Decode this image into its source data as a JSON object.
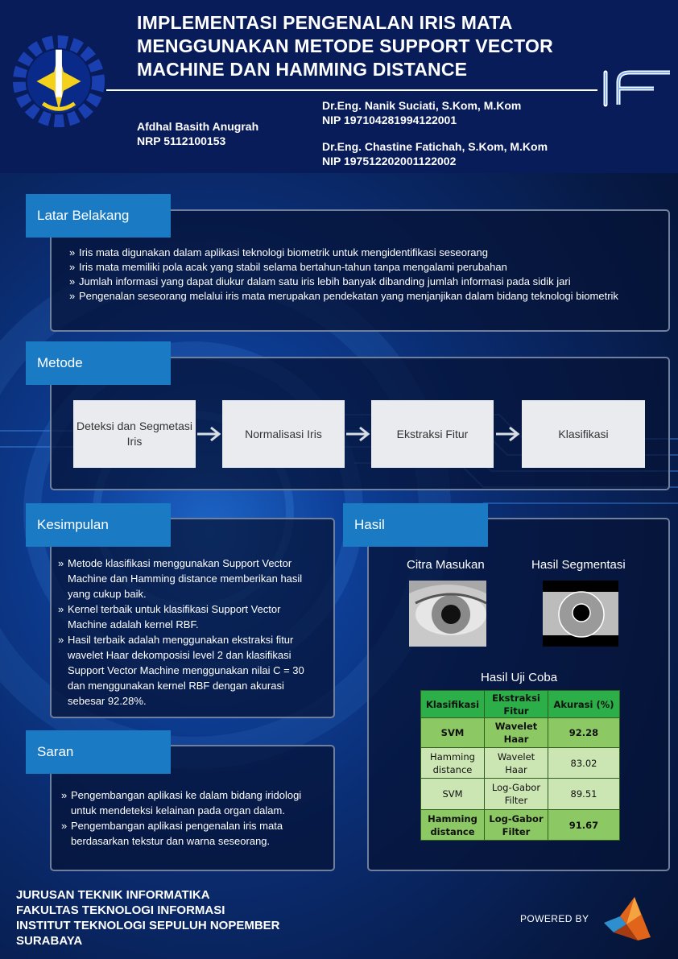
{
  "header": {
    "title_lines": [
      "IMPLEMENTASI PENGENALAN IRIS MATA",
      "MENGGUNAKAN METODE SUPPORT VECTOR",
      "MACHINE DAN HAMMING DISTANCE"
    ],
    "student": {
      "name": "Afdhal Basith Anugrah",
      "id": "NRP 5112100153"
    },
    "advisors": [
      {
        "name": "Dr.Eng. Nanik Suciati, S.Kom, M.Kom",
        "id": "NIP 197104281994122001"
      },
      {
        "name": "Dr.Eng. Chastine Fatichah, S.Kom, M.Kom",
        "id": "NIP 197512202001122002"
      }
    ]
  },
  "latar": {
    "heading": "Latar Belakang",
    "items": [
      "Iris mata digunakan dalam aplikasi teknologi biometrik untuk mengidentifikasi seseorang",
      "Iris mata memiliki pola acak yang stabil selama bertahun-tahun tanpa mengalami perubahan",
      "Jumlah informasi yang dapat diukur dalam satu iris lebih banyak dibanding jumlah informasi pada sidik jari",
      "Pengenalan seseorang melalui iris mata merupakan pendekatan yang menjanjikan dalam bidang teknologi biometrik"
    ]
  },
  "metode": {
    "heading": "Metode",
    "steps": [
      "Deteksi dan Segmetasi Iris",
      "Normalisasi Iris",
      "Ekstraksi Fitur",
      "Klasifikasi"
    ]
  },
  "kesimpulan": {
    "heading": "Kesimpulan",
    "items": [
      "Metode klasifikasi menggunakan Support Vector Machine dan Hamming distance memberikan hasil yang cukup baik.",
      "Kernel terbaik untuk klasifikasi Support Vector Machine adalah kernel RBF.",
      "Hasil terbaik adalah menggunakan ekstraksi fitur wavelet Haar dekomposisi level 2 dan klasifikasi Support Vector Machine menggunakan nilai C = 30 dan menggunakan kernel RBF dengan akurasi sebesar 92.28%."
    ]
  },
  "saran": {
    "heading": "Saran",
    "items": [
      "Pengembangan aplikasi ke dalam bidang iridologi untuk mendeteksi kelainan pada organ dalam.",
      "Pengembangan aplikasi pengenalan iris mata berdasarkan tekstur dan warna seseorang."
    ]
  },
  "hasil": {
    "heading": "Hasil",
    "input_caption": "Citra Masukan",
    "seg_caption": "Hasil Segmentasi",
    "table_caption": "Hasil Uji Coba",
    "table_headers": [
      "Klasifikasi",
      "Ekstraksi Fitur",
      "Akurasi (%)"
    ],
    "rows": [
      {
        "klasifikasi": "SVM",
        "fitur": "Wavelet Haar",
        "akurasi": "92.28"
      },
      {
        "klasifikasi": "Hamming distance",
        "fitur": "Wavelet Haar",
        "akurasi": "83.02"
      },
      {
        "klasifikasi": "SVM",
        "fitur": "Log-Gabor Filter",
        "akurasi": "89.51"
      },
      {
        "klasifikasi": "Hamming distance",
        "fitur": "Log-Gabor Filter",
        "akurasi": "91.67"
      }
    ]
  },
  "footer": {
    "lines": [
      "JURUSAN TEKNIK INFORMATIKA",
      "FAKULTAS TEKNOLOGI INFORMASI",
      "INSTITUT TEKNOLOGI SEPULUH NOPEMBER",
      "SURABAYA"
    ],
    "powered_by": "POWERED BY"
  },
  "colors": {
    "header_bg": "#081c5a",
    "tab_blue": "#1a7bc4",
    "table_green": "#2cae49"
  }
}
